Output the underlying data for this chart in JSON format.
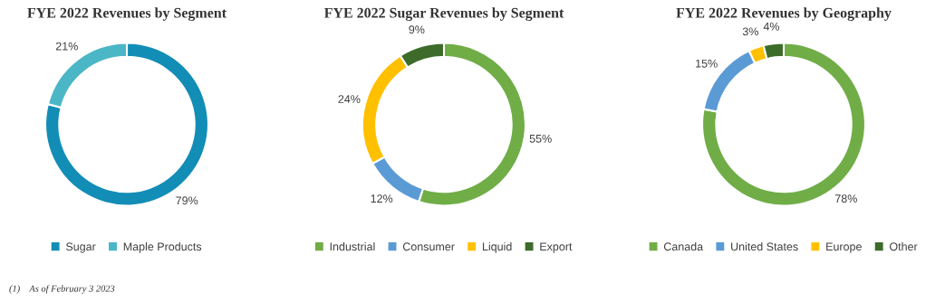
{
  "chart_data": [
    {
      "type": "donut",
      "title": "FYE 2022 Revenues by Segment",
      "categories": [
        "Sugar",
        "Maple Products"
      ],
      "values": [
        79,
        21
      ],
      "value_labels": [
        "79%",
        "21%"
      ],
      "colors": [
        "#128db6",
        "#4bb6c6"
      ],
      "legend": "bottom",
      "annotations": [
        "(1)    As of February 3 2023"
      ]
    },
    {
      "type": "donut",
      "title": "FYE 2022 Sugar Revenues by Segment",
      "categories": [
        "Industrial",
        "Consumer",
        "Liquid",
        "Export"
      ],
      "values": [
        55,
        12,
        24,
        9
      ],
      "value_labels": [
        "55%",
        "12%",
        "24%",
        "9%"
      ],
      "colors": [
        "#70ad47",
        "#5b9bd5",
        "#ffc000",
        "#3d6b2a"
      ],
      "legend": "bottom"
    },
    {
      "type": "donut",
      "title": "FYE 2022 Revenues by Geography",
      "categories": [
        "Canada",
        "United States",
        "Europe",
        "Other"
      ],
      "values": [
        78,
        15,
        3,
        4
      ],
      "value_labels": [
        "78%",
        "15%",
        "3%",
        "4%"
      ],
      "colors": [
        "#70ad47",
        "#5b9bd5",
        "#ffc000",
        "#3d6b2a"
      ],
      "legend": "bottom"
    }
  ]
}
